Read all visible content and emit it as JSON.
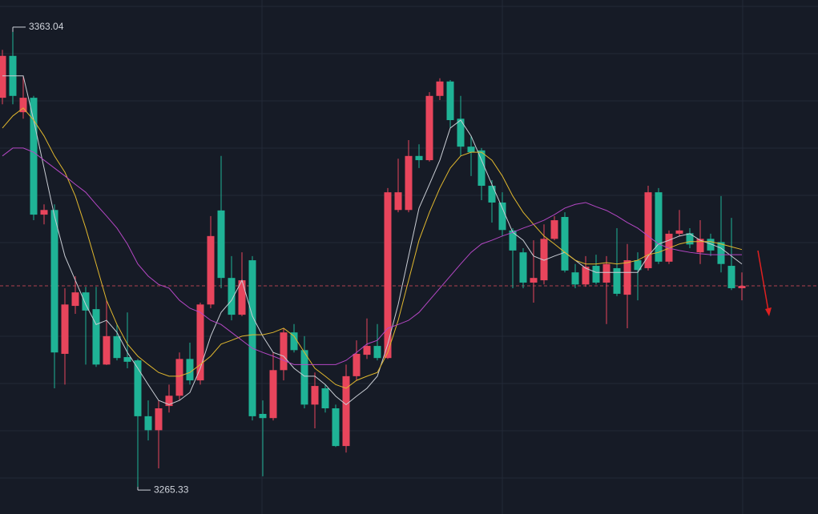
{
  "chart_data": {
    "type": "candlestick",
    "ylim": [
      3259.5,
      3369.9
    ],
    "up_color": "#e8455c",
    "down_color": "#1fb396",
    "open": [
      3348.9,
      3357.9,
      3345.8,
      3348.9,
      3323.8,
      3324.8,
      3293.9,
      3304.2,
      3307.1,
      3303.5,
      3291.6,
      3297.7,
      3293.2,
      3292.5,
      3280.5,
      3277.5,
      3282.7,
      3284.9,
      3292.8,
      3288.2,
      3304.5,
      3324.7,
      3310.2,
      3302.3,
      3314.0,
      3281.0,
      3280.1,
      3290.4,
      3298.5,
      3294.7,
      3283.0,
      3286.5,
      3282.2,
      3274.1,
      3289.1,
      3293.7,
      3295.6,
      3293.0,
      3324.8,
      3324.8,
      3336.4,
      3335.5,
      3349.3,
      3352.4,
      3344.4,
      3338.4,
      3337.6,
      3330.0,
      3326.4,
      3320.4,
      3315.7,
      3309.2,
      3309.7,
      3318.6,
      3323.3,
      3311.4,
      3308.8,
      3312.8,
      3309.2,
      3312.3,
      3306.6,
      3314.0,
      3312.3,
      3328.6,
      3313.7,
      3319.7,
      3319.8,
      3315.7,
      3318.6,
      3317.9,
      3312.8,
      3308.0
    ],
    "high": [
      3359.2,
      3363.04,
      3353.6,
      3349.3,
      3326.0,
      3326.0,
      3308.0,
      3310.6,
      3308.3,
      3308.3,
      3305.4,
      3300.3,
      3302.8,
      3292.8,
      3283.9,
      3283.9,
      3287.3,
      3294.2,
      3296.3,
      3304.9,
      3323.5,
      3336.4,
      3314.9,
      3315.7,
      3314.9,
      3283.9,
      3294.2,
      3299.4,
      3300.3,
      3297.7,
      3289.9,
      3287.3,
      3283.0,
      3291.6,
      3296.8,
      3301.5,
      3300.3,
      3329.5,
      3335.8,
      3339.8,
      3338.9,
      3350.1,
      3353.1,
      3352.7,
      3349.3,
      3340.7,
      3338.1,
      3331.2,
      3328.6,
      3320.9,
      3316.6,
      3318.3,
      3321.7,
      3323.5,
      3324.3,
      3313.2,
      3314.9,
      3315.2,
      3314.9,
      3320.9,
      3317.5,
      3315.7,
      3330.0,
      3329.5,
      3320.4,
      3324.8,
      3320.9,
      3322.6,
      3319.7,
      3327.8,
      3323.1,
      3311.4
    ],
    "low": [
      3347.5,
      3347.5,
      3344.4,
      3322.6,
      3321.7,
      3286.5,
      3287.3,
      3302.5,
      3291.6,
      3291.1,
      3291.5,
      3292.5,
      3290.8,
      3265.33,
      3275.3,
      3269.3,
      3281.3,
      3283.9,
      3287.3,
      3287.3,
      3303.7,
      3308.0,
      3301.1,
      3302.0,
      3279.6,
      3267.6,
      3279.6,
      3288.2,
      3294.2,
      3282.2,
      3277.9,
      3281.3,
      3273.9,
      3272.7,
      3288.2,
      3292.8,
      3292.5,
      3292.8,
      3324.3,
      3324.3,
      3333.8,
      3335.2,
      3348.4,
      3342.4,
      3336.4,
      3332.1,
      3326.9,
      3322.1,
      3319.2,
      3308.0,
      3308.0,
      3304.9,
      3308.8,
      3318.3,
      3311.4,
      3308.0,
      3308.3,
      3308.8,
      3300.3,
      3306.3,
      3299.4,
      3305.4,
      3311.8,
      3313.2,
      3313.2,
      3319.2,
      3316.6,
      3313.2,
      3314.9,
      3311.4,
      3307.6,
      3305.4
    ],
    "close": [
      3357.9,
      3349.3,
      3348.9,
      3323.8,
      3324.8,
      3294.2,
      3304.5,
      3307.1,
      3303.2,
      3291.6,
      3297.7,
      3293.0,
      3292.2,
      3280.5,
      3277.5,
      3282.2,
      3284.9,
      3292.8,
      3288.2,
      3304.5,
      3319.2,
      3310.2,
      3302.3,
      3309.7,
      3280.5,
      3280.1,
      3290.4,
      3298.5,
      3294.7,
      3283.0,
      3287.0,
      3282.2,
      3274.1,
      3289.1,
      3293.9,
      3295.6,
      3293.0,
      3328.6,
      3328.6,
      3336.4,
      3335.5,
      3349.3,
      3352.4,
      3344.1,
      3338.4,
      3337.2,
      3330.0,
      3326.4,
      3320.5,
      3316.1,
      3309.2,
      3310.2,
      3318.6,
      3322.6,
      3311.8,
      3308.8,
      3312.6,
      3309.2,
      3313.2,
      3306.8,
      3314.0,
      3311.9,
      3328.6,
      3313.7,
      3319.7,
      3320.4,
      3317.4,
      3318.6,
      3316.1,
      3313.2,
      3308.0,
      3308.5
    ],
    "lines": [
      {
        "color": "#c9cdd4",
        "values": [
          3353.6,
          3353.6,
          3353.6,
          3344.1,
          3333.8,
          3323.5,
          3314.9,
          3309.7,
          3304.5,
          3300.2,
          3301.1,
          3298.5,
          3294.2,
          3290.8,
          3287.3,
          3283.9,
          3283.0,
          3283.9,
          3285.6,
          3290.8,
          3297.7,
          3302.8,
          3305.4,
          3309.7,
          3302.0,
          3297.7,
          3294.2,
          3293.4,
          3290.8,
          3289.1,
          3289.1,
          3287.3,
          3284.8,
          3283.0,
          3284.8,
          3286.5,
          3289.1,
          3296.0,
          3304.5,
          3314.9,
          3325.2,
          3330.3,
          3335.5,
          3342.4,
          3344.1,
          3340.7,
          3335.5,
          3330.3,
          3325.2,
          3320.0,
          3318.3,
          3314.9,
          3314.0,
          3314.9,
          3315.7,
          3314.0,
          3312.3,
          3311.4,
          3311.4,
          3311.4,
          3311.4,
          3311.4,
          3314.9,
          3317.5,
          3318.3,
          3319.2,
          3319.7,
          3318.3,
          3317.5,
          3316.6,
          3314.9,
          3313.2
        ]
      },
      {
        "color": "#e0b72e",
        "values": [
          3342.4,
          3345.0,
          3346.7,
          3344.1,
          3340.7,
          3336.4,
          3332.9,
          3327.8,
          3320.9,
          3313.2,
          3305.4,
          3300.2,
          3296.0,
          3293.4,
          3291.6,
          3289.9,
          3289.1,
          3289.1,
          3289.9,
          3291.6,
          3293.4,
          3296.0,
          3296.8,
          3297.7,
          3298.0,
          3298.0,
          3298.5,
          3299.4,
          3297.7,
          3294.2,
          3290.8,
          3289.1,
          3287.3,
          3286.5,
          3288.2,
          3289.1,
          3289.9,
          3294.2,
          3301.1,
          3309.7,
          3318.3,
          3324.3,
          3329.5,
          3333.8,
          3336.4,
          3337.2,
          3337.2,
          3335.5,
          3332.1,
          3327.8,
          3324.3,
          3321.7,
          3319.2,
          3317.5,
          3315.7,
          3314.0,
          3313.2,
          3313.2,
          3313.5,
          3313.2,
          3313.5,
          3314.0,
          3315.2,
          3315.7,
          3316.6,
          3317.5,
          3318.0,
          3318.0,
          3318.0,
          3317.5,
          3316.9,
          3316.3
        ]
      },
      {
        "color": "#b447c4",
        "values": [
          3336.4,
          3338.1,
          3338.1,
          3337.2,
          3335.5,
          3333.8,
          3332.1,
          3330.3,
          3328.6,
          3326.0,
          3323.5,
          3320.9,
          3317.5,
          3313.2,
          3310.6,
          3308.8,
          3308.0,
          3305.4,
          3303.7,
          3302.8,
          3301.1,
          3300.2,
          3298.5,
          3296.8,
          3295.1,
          3294.2,
          3293.4,
          3292.5,
          3291.6,
          3291.6,
          3291.6,
          3291.6,
          3291.6,
          3292.5,
          3294.2,
          3296.0,
          3296.8,
          3299.4,
          3300.2,
          3301.1,
          3302.8,
          3305.4,
          3308.0,
          3310.6,
          3313.2,
          3315.7,
          3317.5,
          3318.3,
          3319.2,
          3320.0,
          3320.9,
          3321.7,
          3322.6,
          3323.8,
          3325.2,
          3326.0,
          3326.4,
          3325.5,
          3324.7,
          3323.5,
          3322.1,
          3320.9,
          3319.2,
          3317.5,
          3316.6,
          3316.1,
          3315.7,
          3315.4,
          3315.2,
          3315.2,
          3315.2,
          3315.2
        ]
      }
    ],
    "annotations": [
      3363.04,
      3265.33
    ]
  }
}
